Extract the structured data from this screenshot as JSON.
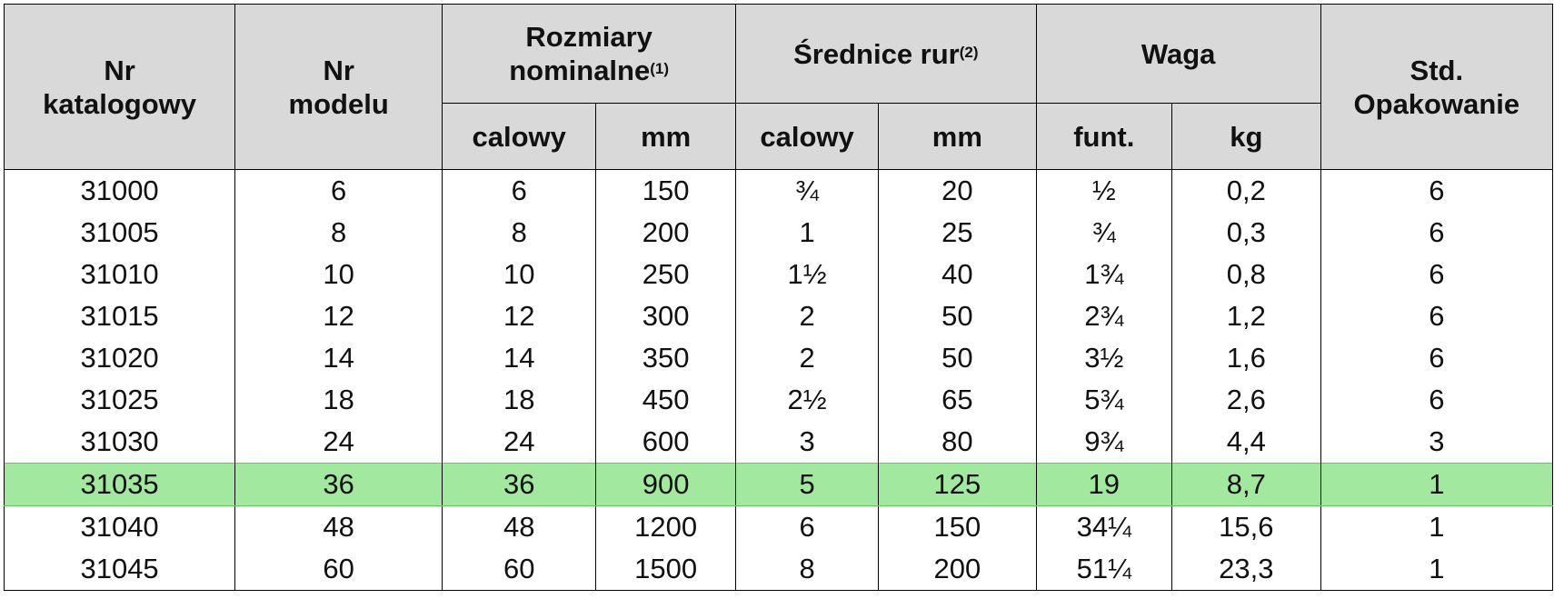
{
  "header": {
    "catalog": [
      "Nr",
      "katalogowy"
    ],
    "model": [
      "Nr",
      "modelu"
    ],
    "nominal": [
      "Rozmiary",
      "nominalne"
    ],
    "nominal_sup": "(1)",
    "pipe": "Średnice rur",
    "pipe_sup": "(2)",
    "weight": "Waga",
    "std": [
      "Std.",
      "Opakowanie"
    ],
    "sub": {
      "nominal_in": "calowy",
      "nominal_mm": "mm",
      "pipe_in": "calowy",
      "pipe_mm": "mm",
      "weight_lb": "funt.",
      "weight_kg": "kg"
    }
  },
  "highlight_color": "#a2e89e",
  "rows": [
    [
      "31000",
      "6",
      "6",
      "150",
      "¾",
      "20",
      "½",
      "0,2",
      "6"
    ],
    [
      "31005",
      "8",
      "8",
      "200",
      "1",
      "25",
      "¾",
      "0,3",
      "6"
    ],
    [
      "31010",
      "10",
      "10",
      "250",
      "1½",
      "40",
      "1¾",
      "0,8",
      "6"
    ],
    [
      "31015",
      "12",
      "12",
      "300",
      "2",
      "50",
      "2¾",
      "1,2",
      "6"
    ],
    [
      "31020",
      "14",
      "14",
      "350",
      "2",
      "50",
      "3½",
      "1,6",
      "6"
    ],
    [
      "31025",
      "18",
      "18",
      "450",
      "2½",
      "65",
      "5¾",
      "2,6",
      "6"
    ],
    [
      "31030",
      "24",
      "24",
      "600",
      "3",
      "80",
      "9¾",
      "4,4",
      "3"
    ],
    [
      "31035",
      "36",
      "36",
      "900",
      "5",
      "125",
      "19",
      "8,7",
      "1"
    ],
    [
      "31040",
      "48",
      "48",
      "1200",
      "6",
      "150",
      "34¼",
      "15,6",
      "1"
    ],
    [
      "31045",
      "60",
      "60",
      "1500",
      "8",
      "200",
      "51¼",
      "23,3",
      "1"
    ]
  ],
  "highlighted_row": 7
}
